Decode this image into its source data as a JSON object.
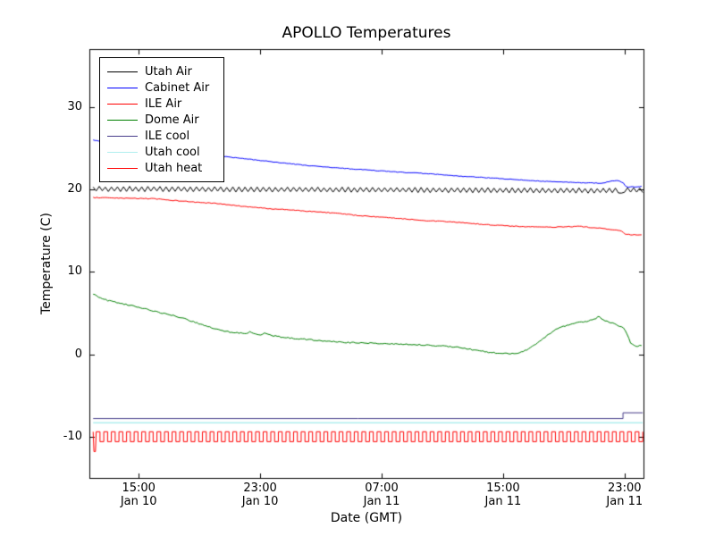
{
  "chart_data": {
    "type": "line",
    "title": "APOLLO Temperatures",
    "xlabel": "Date (GMT)",
    "ylabel": "Temperature (C)",
    "x_unit": "hours since Jan 10 00:00 GMT",
    "xlim_hours": [
      11.75,
      48.25
    ],
    "ylim": [
      -15,
      37
    ],
    "grid": false,
    "legend_position": "upper left",
    "xticks": [
      {
        "t": 15,
        "time": "15:00",
        "date": "Jan 10"
      },
      {
        "t": 23,
        "time": "23:00",
        "date": "Jan 10"
      },
      {
        "t": 31,
        "time": "07:00",
        "date": "Jan 11"
      },
      {
        "t": 39,
        "time": "15:00",
        "date": "Jan 11"
      },
      {
        "t": 47,
        "time": "23:00",
        "date": "Jan 11"
      }
    ],
    "yticks": [
      30,
      20,
      10,
      0,
      -10
    ],
    "series": [
      {
        "name": "Utah Air",
        "color": "#000000",
        "style": "triangle-osc",
        "baseline": [
          [
            12,
            20.05
          ],
          [
            20,
            20.0
          ],
          [
            28,
            19.95
          ],
          [
            36,
            19.9
          ],
          [
            44,
            19.85
          ],
          [
            46.6,
            19.85
          ],
          [
            46.8,
            19.3
          ],
          [
            47.0,
            19.9
          ],
          [
            48.2,
            19.9
          ]
        ],
        "amplitude": 0.27,
        "period_h": 0.4,
        "noise": 0.05
      },
      {
        "name": "Cabinet Air",
        "color": "#0000ff",
        "style": "keypoints",
        "points": [
          [
            12,
            26.0
          ],
          [
            13,
            25.6
          ],
          [
            14,
            25.3
          ],
          [
            15,
            25.1
          ],
          [
            16,
            24.9
          ],
          [
            18,
            24.5
          ],
          [
            20,
            24.1
          ],
          [
            22,
            23.7
          ],
          [
            24,
            23.3
          ],
          [
            26,
            22.9
          ],
          [
            28,
            22.6
          ],
          [
            30,
            22.35
          ],
          [
            32,
            22.1
          ],
          [
            34,
            21.9
          ],
          [
            36,
            21.6
          ],
          [
            38,
            21.4
          ],
          [
            40,
            21.15
          ],
          [
            42,
            20.95
          ],
          [
            44,
            20.8
          ],
          [
            45.5,
            20.75
          ],
          [
            46.2,
            21.0
          ],
          [
            46.6,
            21.1
          ],
          [
            46.9,
            20.8
          ],
          [
            47.1,
            20.25
          ],
          [
            47.6,
            20.3
          ],
          [
            48.2,
            20.35
          ]
        ],
        "noise": 0.04
      },
      {
        "name": "ILE Air",
        "color": "#ff0000",
        "style": "keypoints",
        "points": [
          [
            12,
            19.0
          ],
          [
            13,
            18.95
          ],
          [
            14,
            18.9
          ],
          [
            15,
            18.9
          ],
          [
            16,
            18.85
          ],
          [
            17,
            18.7
          ],
          [
            18,
            18.55
          ],
          [
            19,
            18.4
          ],
          [
            20,
            18.3
          ],
          [
            21,
            18.1
          ],
          [
            22,
            17.9
          ],
          [
            23,
            17.75
          ],
          [
            24,
            17.6
          ],
          [
            25,
            17.5
          ],
          [
            26,
            17.35
          ],
          [
            27,
            17.25
          ],
          [
            28,
            17.1
          ],
          [
            29,
            16.9
          ],
          [
            30,
            16.75
          ],
          [
            31,
            16.6
          ],
          [
            32,
            16.5
          ],
          [
            33,
            16.35
          ],
          [
            34,
            16.2
          ],
          [
            35,
            16.1
          ],
          [
            36,
            16.0
          ],
          [
            37,
            15.85
          ],
          [
            38,
            15.7
          ],
          [
            39,
            15.6
          ],
          [
            40,
            15.5
          ],
          [
            41,
            15.45
          ],
          [
            42,
            15.4
          ],
          [
            43,
            15.45
          ],
          [
            44,
            15.5
          ],
          [
            45,
            15.35
          ],
          [
            45.5,
            15.25
          ],
          [
            46.3,
            15.1
          ],
          [
            46.8,
            14.9
          ],
          [
            47.0,
            14.6
          ],
          [
            47.3,
            14.5
          ],
          [
            47.8,
            14.45
          ],
          [
            48.2,
            14.5
          ]
        ],
        "noise": 0.05
      },
      {
        "name": "Dome Air",
        "color": "#008000",
        "style": "keypoints",
        "points": [
          [
            12,
            7.3
          ],
          [
            12.5,
            6.8
          ],
          [
            13,
            6.5
          ],
          [
            13.5,
            6.3
          ],
          [
            14,
            6.1
          ],
          [
            14.5,
            5.9
          ],
          [
            15,
            5.7
          ],
          [
            15.5,
            5.5
          ],
          [
            16,
            5.2
          ],
          [
            16.5,
            5.0
          ],
          [
            17,
            4.8
          ],
          [
            17.5,
            4.6
          ],
          [
            18,
            4.3
          ],
          [
            18.5,
            4.0
          ],
          [
            19,
            3.7
          ],
          [
            19.5,
            3.4
          ],
          [
            20,
            3.1
          ],
          [
            20.5,
            2.85
          ],
          [
            21,
            2.7
          ],
          [
            21.5,
            2.6
          ],
          [
            22,
            2.5
          ],
          [
            22.3,
            2.7
          ],
          [
            22.6,
            2.45
          ],
          [
            23,
            2.3
          ],
          [
            23.3,
            2.55
          ],
          [
            23.7,
            2.3
          ],
          [
            24,
            2.2
          ],
          [
            24.5,
            2.05
          ],
          [
            25,
            1.95
          ],
          [
            25.5,
            1.9
          ],
          [
            26,
            1.8
          ],
          [
            27,
            1.65
          ],
          [
            28,
            1.5
          ],
          [
            29,
            1.4
          ],
          [
            30,
            1.35
          ],
          [
            31,
            1.3
          ],
          [
            32,
            1.25
          ],
          [
            33,
            1.2
          ],
          [
            34,
            1.1
          ],
          [
            35,
            1.0
          ],
          [
            36,
            0.85
          ],
          [
            36.5,
            0.7
          ],
          [
            37,
            0.55
          ],
          [
            37.5,
            0.4
          ],
          [
            38,
            0.25
          ],
          [
            38.5,
            0.15
          ],
          [
            39,
            0.1
          ],
          [
            39.5,
            0.05
          ],
          [
            40,
            0.15
          ],
          [
            40.5,
            0.45
          ],
          [
            41,
            1.0
          ],
          [
            41.5,
            1.7
          ],
          [
            42,
            2.4
          ],
          [
            42.5,
            3.0
          ],
          [
            43,
            3.4
          ],
          [
            43.5,
            3.65
          ],
          [
            44,
            3.85
          ],
          [
            44.5,
            4.0
          ],
          [
            45,
            4.2
          ],
          [
            45.3,
            4.6
          ],
          [
            45.5,
            4.2
          ],
          [
            45.8,
            4.0
          ],
          [
            46.2,
            3.8
          ],
          [
            46.6,
            3.5
          ],
          [
            47,
            3.1
          ],
          [
            47.2,
            2.3
          ],
          [
            47.4,
            1.4
          ],
          [
            47.6,
            1.05
          ],
          [
            47.9,
            1.0
          ],
          [
            48.2,
            1.1
          ]
        ],
        "noise": 0.07
      },
      {
        "name": "ILE cool",
        "color": "#483d8b",
        "style": "keypoints",
        "points": [
          [
            12,
            -7.8
          ],
          [
            46.9,
            -7.8
          ],
          [
            46.9,
            -7.1
          ],
          [
            48.2,
            -7.1
          ]
        ],
        "noise": 0
      },
      {
        "name": "Utah cool",
        "color": "#afeeee",
        "style": "keypoints",
        "lw": 1.5,
        "points": [
          [
            12,
            -8.3
          ],
          [
            48.2,
            -8.3
          ]
        ],
        "noise": 0
      },
      {
        "name": "Utah heat",
        "color": "#ff0000",
        "style": "square",
        "high": -9.4,
        "low": -10.6,
        "period_h": 0.5,
        "duty": 0.5,
        "t_start": 12,
        "t_end": 48.2,
        "prefix": [
          [
            12,
            -9.4
          ],
          [
            12.05,
            -11.8
          ],
          [
            12.15,
            -11.8
          ],
          [
            12.2,
            -9.4
          ]
        ]
      }
    ]
  }
}
